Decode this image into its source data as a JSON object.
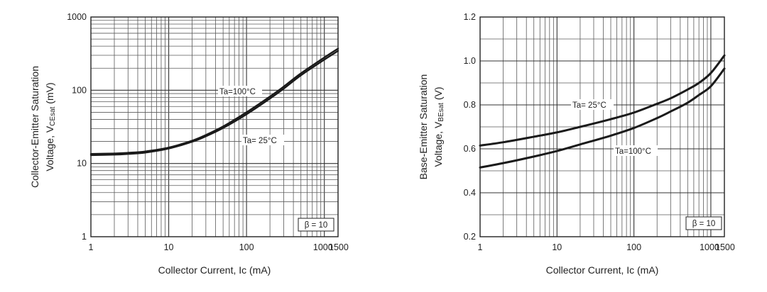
{
  "chart_data": [
    {
      "type": "line",
      "title": "",
      "xlabel": "Collector Current, Ic (mA)",
      "ylabel_line1": "Collector-Emitter Saturation",
      "ylabel_line2_prefix": "Voltage, V",
      "ylabel_line2_sub": "CEsat",
      "ylabel_line2_suffix": " (mV)",
      "x_scale": "log",
      "y_scale": "log",
      "xlim": [
        1,
        1500
      ],
      "ylim": [
        1,
        1000
      ],
      "x_ticks": [
        {
          "value": 1,
          "label": "1"
        },
        {
          "value": 10,
          "label": "10"
        },
        {
          "value": 100,
          "label": "100"
        },
        {
          "value": 1000,
          "label": "1000"
        },
        {
          "value": 1500,
          "label": "1500"
        }
      ],
      "y_ticks": [
        {
          "value": 1,
          "label": "1"
        },
        {
          "value": 10,
          "label": "10"
        },
        {
          "value": 100,
          "label": "100"
        },
        {
          "value": 1000,
          "label": "1000"
        }
      ],
      "grid": true,
      "note": "β = 10",
      "series": [
        {
          "name": "Ta=100°C",
          "x": [
            1,
            2,
            3,
            5,
            10,
            20,
            30,
            50,
            100,
            200,
            300,
            500,
            1000,
            1500
          ],
          "y": [
            13.5,
            13.7,
            14,
            14.6,
            16.5,
            20.5,
            24.5,
            32,
            50,
            82,
            112,
            170,
            280,
            370
          ]
        },
        {
          "name": "Ta= 25°C",
          "x": [
            1,
            2,
            3,
            5,
            10,
            20,
            30,
            50,
            100,
            200,
            300,
            500,
            1000,
            1500
          ],
          "y": [
            13,
            13.2,
            13.5,
            14.1,
            16,
            19.8,
            23.5,
            30.5,
            47,
            77,
            105,
            160,
            262,
            345
          ]
        }
      ]
    },
    {
      "type": "line",
      "title": "",
      "xlabel": "Collector Current, Ic (mA)",
      "ylabel_line1": "Base-Emitter Saturation",
      "ylabel_line2_prefix": "Voltage, V",
      "ylabel_line2_sub": "BEsat",
      "ylabel_line2_suffix": " (V)",
      "x_scale": "log",
      "y_scale": "linear",
      "xlim": [
        1,
        1500
      ],
      "ylim": [
        0.2,
        1.2
      ],
      "x_ticks": [
        {
          "value": 1,
          "label": "1"
        },
        {
          "value": 10,
          "label": "10"
        },
        {
          "value": 100,
          "label": "100"
        },
        {
          "value": 1000,
          "label": "1000"
        },
        {
          "value": 1500,
          "label": "1500"
        }
      ],
      "y_ticks": [
        {
          "value": 0.2,
          "label": "0.2"
        },
        {
          "value": 0.4,
          "label": "0.4"
        },
        {
          "value": 0.6,
          "label": "0.6"
        },
        {
          "value": 0.8,
          "label": "0.8"
        },
        {
          "value": 1.0,
          "label": "1.0"
        },
        {
          "value": 1.2,
          "label": "1.2"
        }
      ],
      "grid": true,
      "note": "β = 10",
      "series": [
        {
          "name": "Ta= 25°C",
          "x": [
            1,
            2,
            5,
            10,
            20,
            50,
            100,
            200,
            300,
            500,
            700,
            1000,
            1500
          ],
          "y": [
            0.615,
            0.63,
            0.655,
            0.675,
            0.7,
            0.735,
            0.765,
            0.805,
            0.83,
            0.87,
            0.9,
            0.945,
            1.025
          ]
        },
        {
          "name": "Ta=100°C",
          "x": [
            1,
            2,
            5,
            10,
            20,
            50,
            100,
            200,
            300,
            500,
            700,
            1000,
            1500
          ],
          "y": [
            0.515,
            0.535,
            0.565,
            0.59,
            0.62,
            0.66,
            0.695,
            0.74,
            0.77,
            0.81,
            0.845,
            0.885,
            0.965
          ]
        }
      ]
    }
  ]
}
